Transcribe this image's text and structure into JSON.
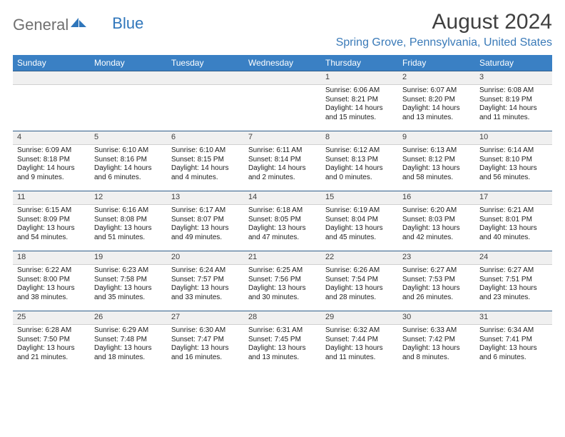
{
  "logo": {
    "word1": "General",
    "word2": "Blue"
  },
  "title": "August 2024",
  "location": "Spring Grove, Pennsylvania, United States",
  "dow": [
    "Sunday",
    "Monday",
    "Tuesday",
    "Wednesday",
    "Thursday",
    "Friday",
    "Saturday"
  ],
  "colors": {
    "header_bg": "#3a80c4",
    "header_fg": "#ffffff",
    "rule": "#2f5d8a",
    "daynum_bg": "#f0f0f0",
    "accent": "#2f76bb"
  },
  "rows": [
    [
      null,
      null,
      null,
      null,
      {
        "n": "1",
        "sunrise": "Sunrise: 6:06 AM",
        "sunset": "Sunset: 8:21 PM",
        "daylight": "Daylight: 14 hours and 15 minutes."
      },
      {
        "n": "2",
        "sunrise": "Sunrise: 6:07 AM",
        "sunset": "Sunset: 8:20 PM",
        "daylight": "Daylight: 14 hours and 13 minutes."
      },
      {
        "n": "3",
        "sunrise": "Sunrise: 6:08 AM",
        "sunset": "Sunset: 8:19 PM",
        "daylight": "Daylight: 14 hours and 11 minutes."
      }
    ],
    [
      {
        "n": "4",
        "sunrise": "Sunrise: 6:09 AM",
        "sunset": "Sunset: 8:18 PM",
        "daylight": "Daylight: 14 hours and 9 minutes."
      },
      {
        "n": "5",
        "sunrise": "Sunrise: 6:10 AM",
        "sunset": "Sunset: 8:16 PM",
        "daylight": "Daylight: 14 hours and 6 minutes."
      },
      {
        "n": "6",
        "sunrise": "Sunrise: 6:10 AM",
        "sunset": "Sunset: 8:15 PM",
        "daylight": "Daylight: 14 hours and 4 minutes."
      },
      {
        "n": "7",
        "sunrise": "Sunrise: 6:11 AM",
        "sunset": "Sunset: 8:14 PM",
        "daylight": "Daylight: 14 hours and 2 minutes."
      },
      {
        "n": "8",
        "sunrise": "Sunrise: 6:12 AM",
        "sunset": "Sunset: 8:13 PM",
        "daylight": "Daylight: 14 hours and 0 minutes."
      },
      {
        "n": "9",
        "sunrise": "Sunrise: 6:13 AM",
        "sunset": "Sunset: 8:12 PM",
        "daylight": "Daylight: 13 hours and 58 minutes."
      },
      {
        "n": "10",
        "sunrise": "Sunrise: 6:14 AM",
        "sunset": "Sunset: 8:10 PM",
        "daylight": "Daylight: 13 hours and 56 minutes."
      }
    ],
    [
      {
        "n": "11",
        "sunrise": "Sunrise: 6:15 AM",
        "sunset": "Sunset: 8:09 PM",
        "daylight": "Daylight: 13 hours and 54 minutes."
      },
      {
        "n": "12",
        "sunrise": "Sunrise: 6:16 AM",
        "sunset": "Sunset: 8:08 PM",
        "daylight": "Daylight: 13 hours and 51 minutes."
      },
      {
        "n": "13",
        "sunrise": "Sunrise: 6:17 AM",
        "sunset": "Sunset: 8:07 PM",
        "daylight": "Daylight: 13 hours and 49 minutes."
      },
      {
        "n": "14",
        "sunrise": "Sunrise: 6:18 AM",
        "sunset": "Sunset: 8:05 PM",
        "daylight": "Daylight: 13 hours and 47 minutes."
      },
      {
        "n": "15",
        "sunrise": "Sunrise: 6:19 AM",
        "sunset": "Sunset: 8:04 PM",
        "daylight": "Daylight: 13 hours and 45 minutes."
      },
      {
        "n": "16",
        "sunrise": "Sunrise: 6:20 AM",
        "sunset": "Sunset: 8:03 PM",
        "daylight": "Daylight: 13 hours and 42 minutes."
      },
      {
        "n": "17",
        "sunrise": "Sunrise: 6:21 AM",
        "sunset": "Sunset: 8:01 PM",
        "daylight": "Daylight: 13 hours and 40 minutes."
      }
    ],
    [
      {
        "n": "18",
        "sunrise": "Sunrise: 6:22 AM",
        "sunset": "Sunset: 8:00 PM",
        "daylight": "Daylight: 13 hours and 38 minutes."
      },
      {
        "n": "19",
        "sunrise": "Sunrise: 6:23 AM",
        "sunset": "Sunset: 7:58 PM",
        "daylight": "Daylight: 13 hours and 35 minutes."
      },
      {
        "n": "20",
        "sunrise": "Sunrise: 6:24 AM",
        "sunset": "Sunset: 7:57 PM",
        "daylight": "Daylight: 13 hours and 33 minutes."
      },
      {
        "n": "21",
        "sunrise": "Sunrise: 6:25 AM",
        "sunset": "Sunset: 7:56 PM",
        "daylight": "Daylight: 13 hours and 30 minutes."
      },
      {
        "n": "22",
        "sunrise": "Sunrise: 6:26 AM",
        "sunset": "Sunset: 7:54 PM",
        "daylight": "Daylight: 13 hours and 28 minutes."
      },
      {
        "n": "23",
        "sunrise": "Sunrise: 6:27 AM",
        "sunset": "Sunset: 7:53 PM",
        "daylight": "Daylight: 13 hours and 26 minutes."
      },
      {
        "n": "24",
        "sunrise": "Sunrise: 6:27 AM",
        "sunset": "Sunset: 7:51 PM",
        "daylight": "Daylight: 13 hours and 23 minutes."
      }
    ],
    [
      {
        "n": "25",
        "sunrise": "Sunrise: 6:28 AM",
        "sunset": "Sunset: 7:50 PM",
        "daylight": "Daylight: 13 hours and 21 minutes."
      },
      {
        "n": "26",
        "sunrise": "Sunrise: 6:29 AM",
        "sunset": "Sunset: 7:48 PM",
        "daylight": "Daylight: 13 hours and 18 minutes."
      },
      {
        "n": "27",
        "sunrise": "Sunrise: 6:30 AM",
        "sunset": "Sunset: 7:47 PM",
        "daylight": "Daylight: 13 hours and 16 minutes."
      },
      {
        "n": "28",
        "sunrise": "Sunrise: 6:31 AM",
        "sunset": "Sunset: 7:45 PM",
        "daylight": "Daylight: 13 hours and 13 minutes."
      },
      {
        "n": "29",
        "sunrise": "Sunrise: 6:32 AM",
        "sunset": "Sunset: 7:44 PM",
        "daylight": "Daylight: 13 hours and 11 minutes."
      },
      {
        "n": "30",
        "sunrise": "Sunrise: 6:33 AM",
        "sunset": "Sunset: 7:42 PM",
        "daylight": "Daylight: 13 hours and 8 minutes."
      },
      {
        "n": "31",
        "sunrise": "Sunrise: 6:34 AM",
        "sunset": "Sunset: 7:41 PM",
        "daylight": "Daylight: 13 hours and 6 minutes."
      }
    ]
  ]
}
